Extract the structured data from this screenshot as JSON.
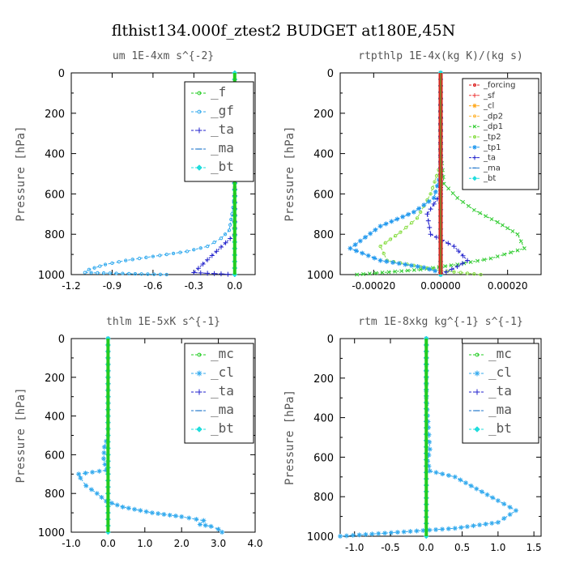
{
  "figure": {
    "title": "flthist134.000f_ztest2  BUDGET at180E,45N"
  },
  "chart_data": [
    {
      "type": "line",
      "title": "um  1E-4xm s^{-2}",
      "ylabel": "Pressure [hPa]",
      "xlim": [
        -1.2,
        0.15
      ],
      "ylim": [
        1000,
        0
      ],
      "xticks": [
        "-1.2",
        "-0.9",
        "-0.6",
        "-0.3",
        "0.0"
      ],
      "xtick_values": [
        -1.2,
        -0.9,
        -0.6,
        -0.3,
        0.0
      ],
      "yticks": [
        "0",
        "200",
        "400",
        "600",
        "800",
        "1000"
      ],
      "ytick_values": [
        0,
        200,
        400,
        600,
        800,
        1000
      ],
      "legend": {
        "placement": "top-right",
        "style": "big"
      },
      "series": [
        {
          "name": "_f",
          "color": "#22cc22",
          "marker": "circle",
          "points": [
            [
              0.0,
              0
            ],
            [
              0.0,
              200
            ],
            [
              0.0,
              400
            ],
            [
              0.0,
              600
            ],
            [
              0.0,
              800
            ],
            [
              0.0,
              1000
            ]
          ]
        },
        {
          "name": "_gf",
          "color": "#33aaee",
          "marker": "circle",
          "points": [
            [
              0.0,
              0
            ],
            [
              0.0,
              400
            ],
            [
              0.0,
              600
            ],
            [
              -0.02,
              700
            ],
            [
              -0.04,
              780
            ],
            [
              -0.1,
              820
            ],
            [
              -0.2,
              860
            ],
            [
              -0.35,
              885
            ],
            [
              -0.55,
              905
            ],
            [
              -0.8,
              930
            ],
            [
              -0.95,
              950
            ],
            [
              -1.07,
              975
            ],
            [
              -1.1,
              990
            ],
            [
              -0.5,
              1000
            ]
          ]
        },
        {
          "name": "_ta",
          "color": "#2222cc",
          "marker": "plus",
          "points": [
            [
              0.0,
              0
            ],
            [
              0.0,
              800
            ],
            [
              -0.3,
              990
            ],
            [
              0.0,
              1000
            ]
          ]
        },
        {
          "name": "_ma",
          "color": "#2277cc",
          "marker": "dash",
          "points": [
            [
              0.0,
              0
            ],
            [
              0.0,
              1000
            ]
          ]
        },
        {
          "name": "_bt",
          "color": "#22dddd",
          "marker": "diamond",
          "points": [
            [
              0.0,
              0
            ],
            [
              0.0,
              1000
            ]
          ]
        }
      ]
    },
    {
      "type": "line",
      "title": "rtpthlp  1E-4x(kg K)/(kg s)",
      "ylabel": "Pressure [hPa]",
      "xlim": [
        -0.0003,
        0.0003
      ],
      "ylim": [
        1000,
        0
      ],
      "xticks": [
        "-0.00020",
        "0.00000",
        "0.00020"
      ],
      "xtick_values": [
        -0.0002,
        0.0,
        0.0002
      ],
      "yticks": [
        "0",
        "200",
        "400",
        "600",
        "800",
        "1000"
      ],
      "ytick_values": [
        0,
        200,
        400,
        600,
        800,
        1000
      ],
      "legend": {
        "placement": "top-right",
        "style": "small"
      },
      "series": [
        {
          "name": "_forcing",
          "color": "#dd2222",
          "marker": "circle",
          "points": [
            [
              0.0,
              0
            ],
            [
              0.0,
              1000
            ]
          ]
        },
        {
          "name": "_sf",
          "color": "#ee4444",
          "marker": "plus",
          "points": [
            [
              0.0,
              0
            ],
            [
              0.0,
              1000
            ]
          ]
        },
        {
          "name": "_cl",
          "color": "#ffaa22",
          "marker": "star",
          "points": [
            [
              0.0,
              0
            ],
            [
              0.0,
              1000
            ]
          ]
        },
        {
          "name": "_dp2",
          "color": "#ffbb44",
          "marker": "circle",
          "points": [
            [
              0.0,
              0
            ],
            [
              0.0,
              1000
            ]
          ]
        },
        {
          "name": "_dp1",
          "color": "#33cc33",
          "marker": "cross",
          "points": [
            [
              0.0,
              0
            ],
            [
              0.0,
              380
            ],
            [
              1e-05,
              550
            ],
            [
              5e-05,
              620
            ],
            [
              0.0001,
              680
            ],
            [
              0.00017,
              740
            ],
            [
              0.00023,
              800
            ],
            [
              0.00025,
              870
            ],
            [
              0.00015,
              920
            ],
            [
              5e-05,
              950
            ],
            [
              -6e-05,
              975
            ],
            [
              -0.00025,
              1000
            ]
          ]
        },
        {
          "name": "_tp2",
          "color": "#88dd44",
          "marker": "circle",
          "points": [
            [
              0.0,
              0
            ],
            [
              0.0,
              450
            ],
            [
              -3e-05,
              600
            ],
            [
              -7e-05,
              720
            ],
            [
              -0.00012,
              790
            ],
            [
              -0.00018,
              860
            ],
            [
              -0.00016,
              930
            ],
            [
              -8e-05,
              955
            ],
            [
              0.0,
              980
            ],
            [
              0.00012,
              1000
            ]
          ]
        },
        {
          "name": "_tp1",
          "color": "#2299ee",
          "marker": "star",
          "points": [
            [
              0.0,
              0
            ],
            [
              0.0,
              500
            ],
            [
              -2e-05,
              620
            ],
            [
              -8e-05,
              690
            ],
            [
              -0.00018,
              760
            ],
            [
              -0.00027,
              870
            ],
            [
              -0.00018,
              930
            ],
            [
              -5e-05,
              965
            ],
            [
              0.0,
              990
            ],
            [
              0.0,
              1000
            ]
          ]
        },
        {
          "name": "_ta",
          "color": "#2222cc",
          "marker": "plus",
          "points": [
            [
              0.0,
              0
            ],
            [
              0.0,
              600
            ],
            [
              -4e-05,
              700
            ],
            [
              -3e-05,
              800
            ],
            [
              4e-05,
              860
            ],
            [
              8e-05,
              930
            ],
            [
              5e-05,
              960
            ],
            [
              0.0,
              1000
            ]
          ]
        },
        {
          "name": "_ma",
          "color": "#2277cc",
          "marker": "dash",
          "points": [
            [
              0.0,
              0
            ],
            [
              0.0,
              1000
            ]
          ]
        },
        {
          "name": "_bt",
          "color": "#22dddd",
          "marker": "diamond",
          "points": [
            [
              0.0,
              0
            ],
            [
              0.0,
              1000
            ]
          ]
        }
      ]
    },
    {
      "type": "line",
      "title": "thlm  1E-5xK s^{-1}",
      "ylabel": "Pressure [hPa]",
      "xlim": [
        -1.0,
        4.0
      ],
      "ylim": [
        1000,
        0
      ],
      "xticks": [
        "-1.0",
        "0.0",
        "1.0",
        "2.0",
        "3.0",
        "4.0"
      ],
      "xtick_values": [
        -1.0,
        0.0,
        1.0,
        2.0,
        3.0,
        4.0
      ],
      "yticks": [
        "0",
        "200",
        "400",
        "600",
        "800",
        "1000"
      ],
      "ytick_values": [
        0,
        200,
        400,
        600,
        800,
        1000
      ],
      "legend": {
        "placement": "top-right",
        "style": "big"
      },
      "series": [
        {
          "name": "_mc",
          "color": "#22cc22",
          "marker": "circle",
          "points": [
            [
              0.0,
              0
            ],
            [
              0.0,
              1000
            ]
          ]
        },
        {
          "name": "_cl",
          "color": "#33aaee",
          "marker": "star",
          "points": [
            [
              0.0,
              0
            ],
            [
              0.0,
              500
            ],
            [
              -0.1,
              560
            ],
            [
              -0.12,
              620
            ],
            [
              -0.05,
              680
            ],
            [
              -0.8,
              700
            ],
            [
              -0.75,
              720
            ],
            [
              -0.6,
              760
            ],
            [
              -0.3,
              800
            ],
            [
              -0.05,
              840
            ],
            [
              0.4,
              870
            ],
            [
              1.2,
              900
            ],
            [
              2.0,
              920
            ],
            [
              2.6,
              940
            ],
            [
              2.5,
              960
            ],
            [
              2.8,
              970
            ],
            [
              3.0,
              985
            ],
            [
              3.1,
              1000
            ]
          ]
        },
        {
          "name": "_ta",
          "color": "#2222cc",
          "marker": "plus",
          "points": [
            [
              0.0,
              0
            ],
            [
              0.0,
              1000
            ]
          ]
        },
        {
          "name": "_ma",
          "color": "#2277cc",
          "marker": "dash",
          "points": [
            [
              0.0,
              0
            ],
            [
              0.0,
              1000
            ]
          ]
        },
        {
          "name": "_bt",
          "color": "#22dddd",
          "marker": "diamond",
          "points": [
            [
              0.0,
              0
            ],
            [
              0.0,
              1000
            ]
          ]
        }
      ]
    },
    {
      "type": "line",
      "title": "rtm  1E-8xkg kg^{-1} s^{-1}",
      "ylabel": "Pressure [hPa]",
      "xlim": [
        -1.2,
        1.6
      ],
      "ylim": [
        1000,
        0
      ],
      "xticks": [
        "-1.0",
        "-0.5",
        "0.0",
        "0.5",
        "1.0",
        "1.5"
      ],
      "xtick_values": [
        -1.0,
        -0.5,
        0.0,
        0.5,
        1.0,
        1.5
      ],
      "yticks": [
        "0",
        "200",
        "400",
        "600",
        "800",
        "1000"
      ],
      "ytick_values": [
        0,
        200,
        400,
        600,
        800,
        1000
      ],
      "legend": {
        "placement": "top-right",
        "style": "big"
      },
      "series": [
        {
          "name": "_mc",
          "color": "#22cc22",
          "marker": "circle",
          "points": [
            [
              0.0,
              0
            ],
            [
              0.0,
              1000
            ]
          ]
        },
        {
          "name": "_cl",
          "color": "#33aaee",
          "marker": "star",
          "points": [
            [
              0.0,
              0
            ],
            [
              0.0,
              300
            ],
            [
              0.03,
              450
            ],
            [
              0.05,
              560
            ],
            [
              0.02,
              620
            ],
            [
              0.05,
              670
            ],
            [
              0.4,
              700
            ],
            [
              0.7,
              760
            ],
            [
              1.0,
              820
            ],
            [
              1.25,
              870
            ],
            [
              1.0,
              930
            ],
            [
              0.4,
              960
            ],
            [
              -0.4,
              980
            ],
            [
              -1.2,
              1000
            ]
          ]
        },
        {
          "name": "_ta",
          "color": "#2222cc",
          "marker": "plus",
          "points": [
            [
              0.0,
              0
            ],
            [
              0.0,
              1000
            ]
          ]
        },
        {
          "name": "_ma",
          "color": "#2277cc",
          "marker": "dash",
          "points": [
            [
              0.0,
              0
            ],
            [
              0.0,
              1000
            ]
          ]
        },
        {
          "name": "_bt",
          "color": "#22dddd",
          "marker": "diamond",
          "points": [
            [
              0.0,
              0
            ],
            [
              0.0,
              1000
            ]
          ]
        }
      ]
    }
  ]
}
